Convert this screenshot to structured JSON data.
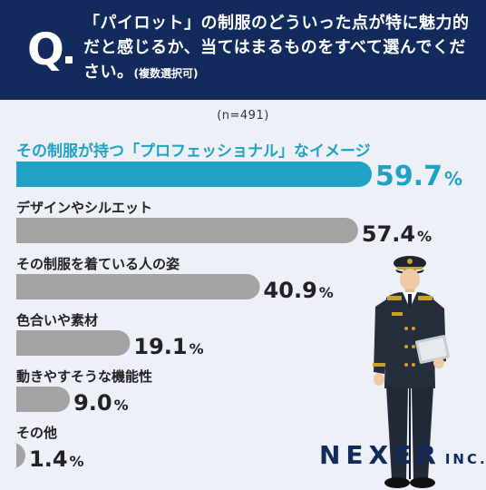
{
  "question": {
    "mark": "Q",
    "text": "「パイロット」の制服のどういった点が特に魅力的だと感じるか、当てはまるものをすべて選んでください。",
    "note": "(複数選択可)"
  },
  "sample_size": "(n=491)",
  "logo": {
    "main": "NEXER",
    "sub": "INC."
  },
  "colors": {
    "header_bg": "#122a5c",
    "top_bar": "#1fa2c3",
    "bar": "#a3a3a3",
    "top_label": "#1fa2c3",
    "label": "#222222"
  },
  "chart_data": {
    "type": "bar",
    "orientation": "horizontal",
    "unit": "%",
    "xlim": [
      0,
      100
    ],
    "categories": [
      "その制服が持つ「プロフェッショナル」なイメージ",
      "デザインやシルエット",
      "その制服を着ている人の姿",
      "色合いや素材",
      "動きやすそうな機能性",
      "その他"
    ],
    "values": [
      59.7,
      57.4,
      40.9,
      19.1,
      9.0,
      1.4
    ],
    "value_labels": [
      "59.7",
      "57.4",
      "40.9",
      "19.1",
      "9.0",
      "1.4"
    ]
  }
}
